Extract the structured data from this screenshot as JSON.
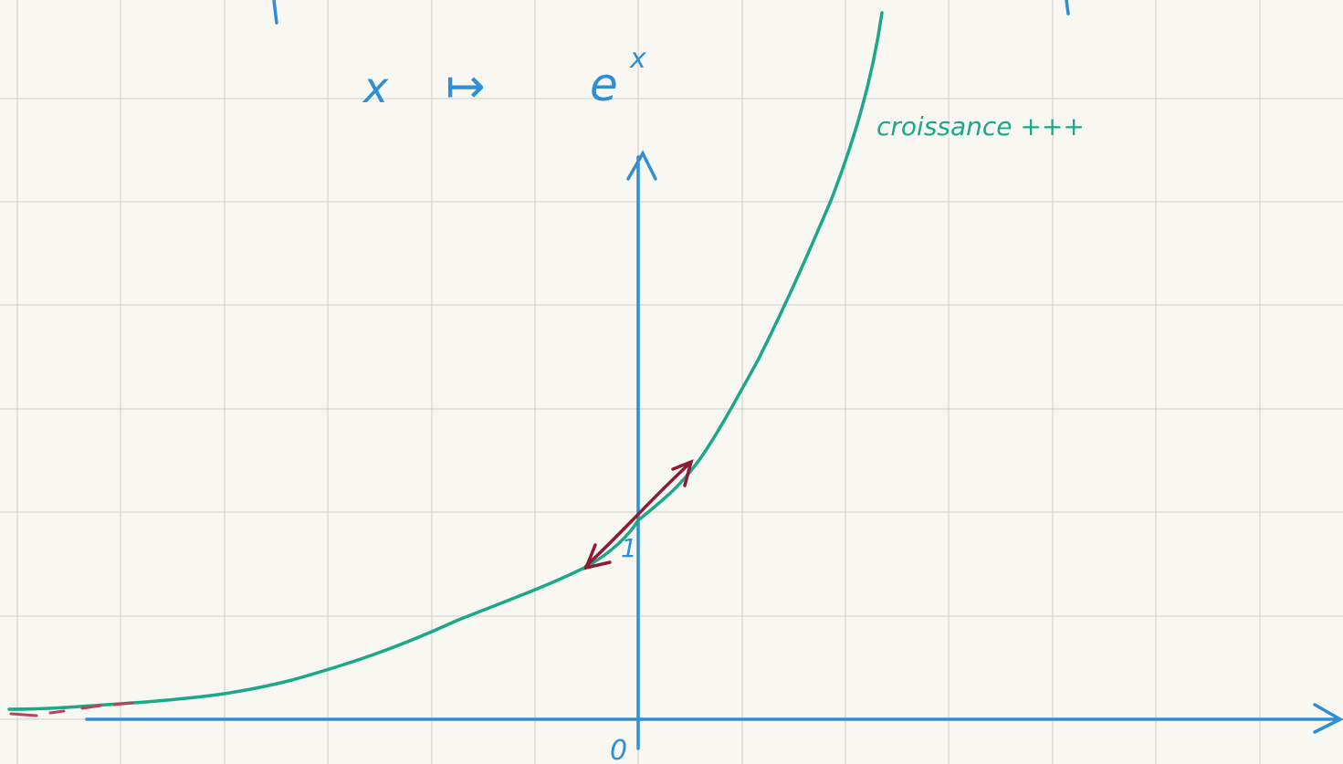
{
  "mapping": {
    "variable": "x",
    "arrow": "↦",
    "base": "e",
    "exponent": "x"
  },
  "annotation": "croissance +++",
  "axis_labels": {
    "origin": "0",
    "unit": "1"
  }
}
